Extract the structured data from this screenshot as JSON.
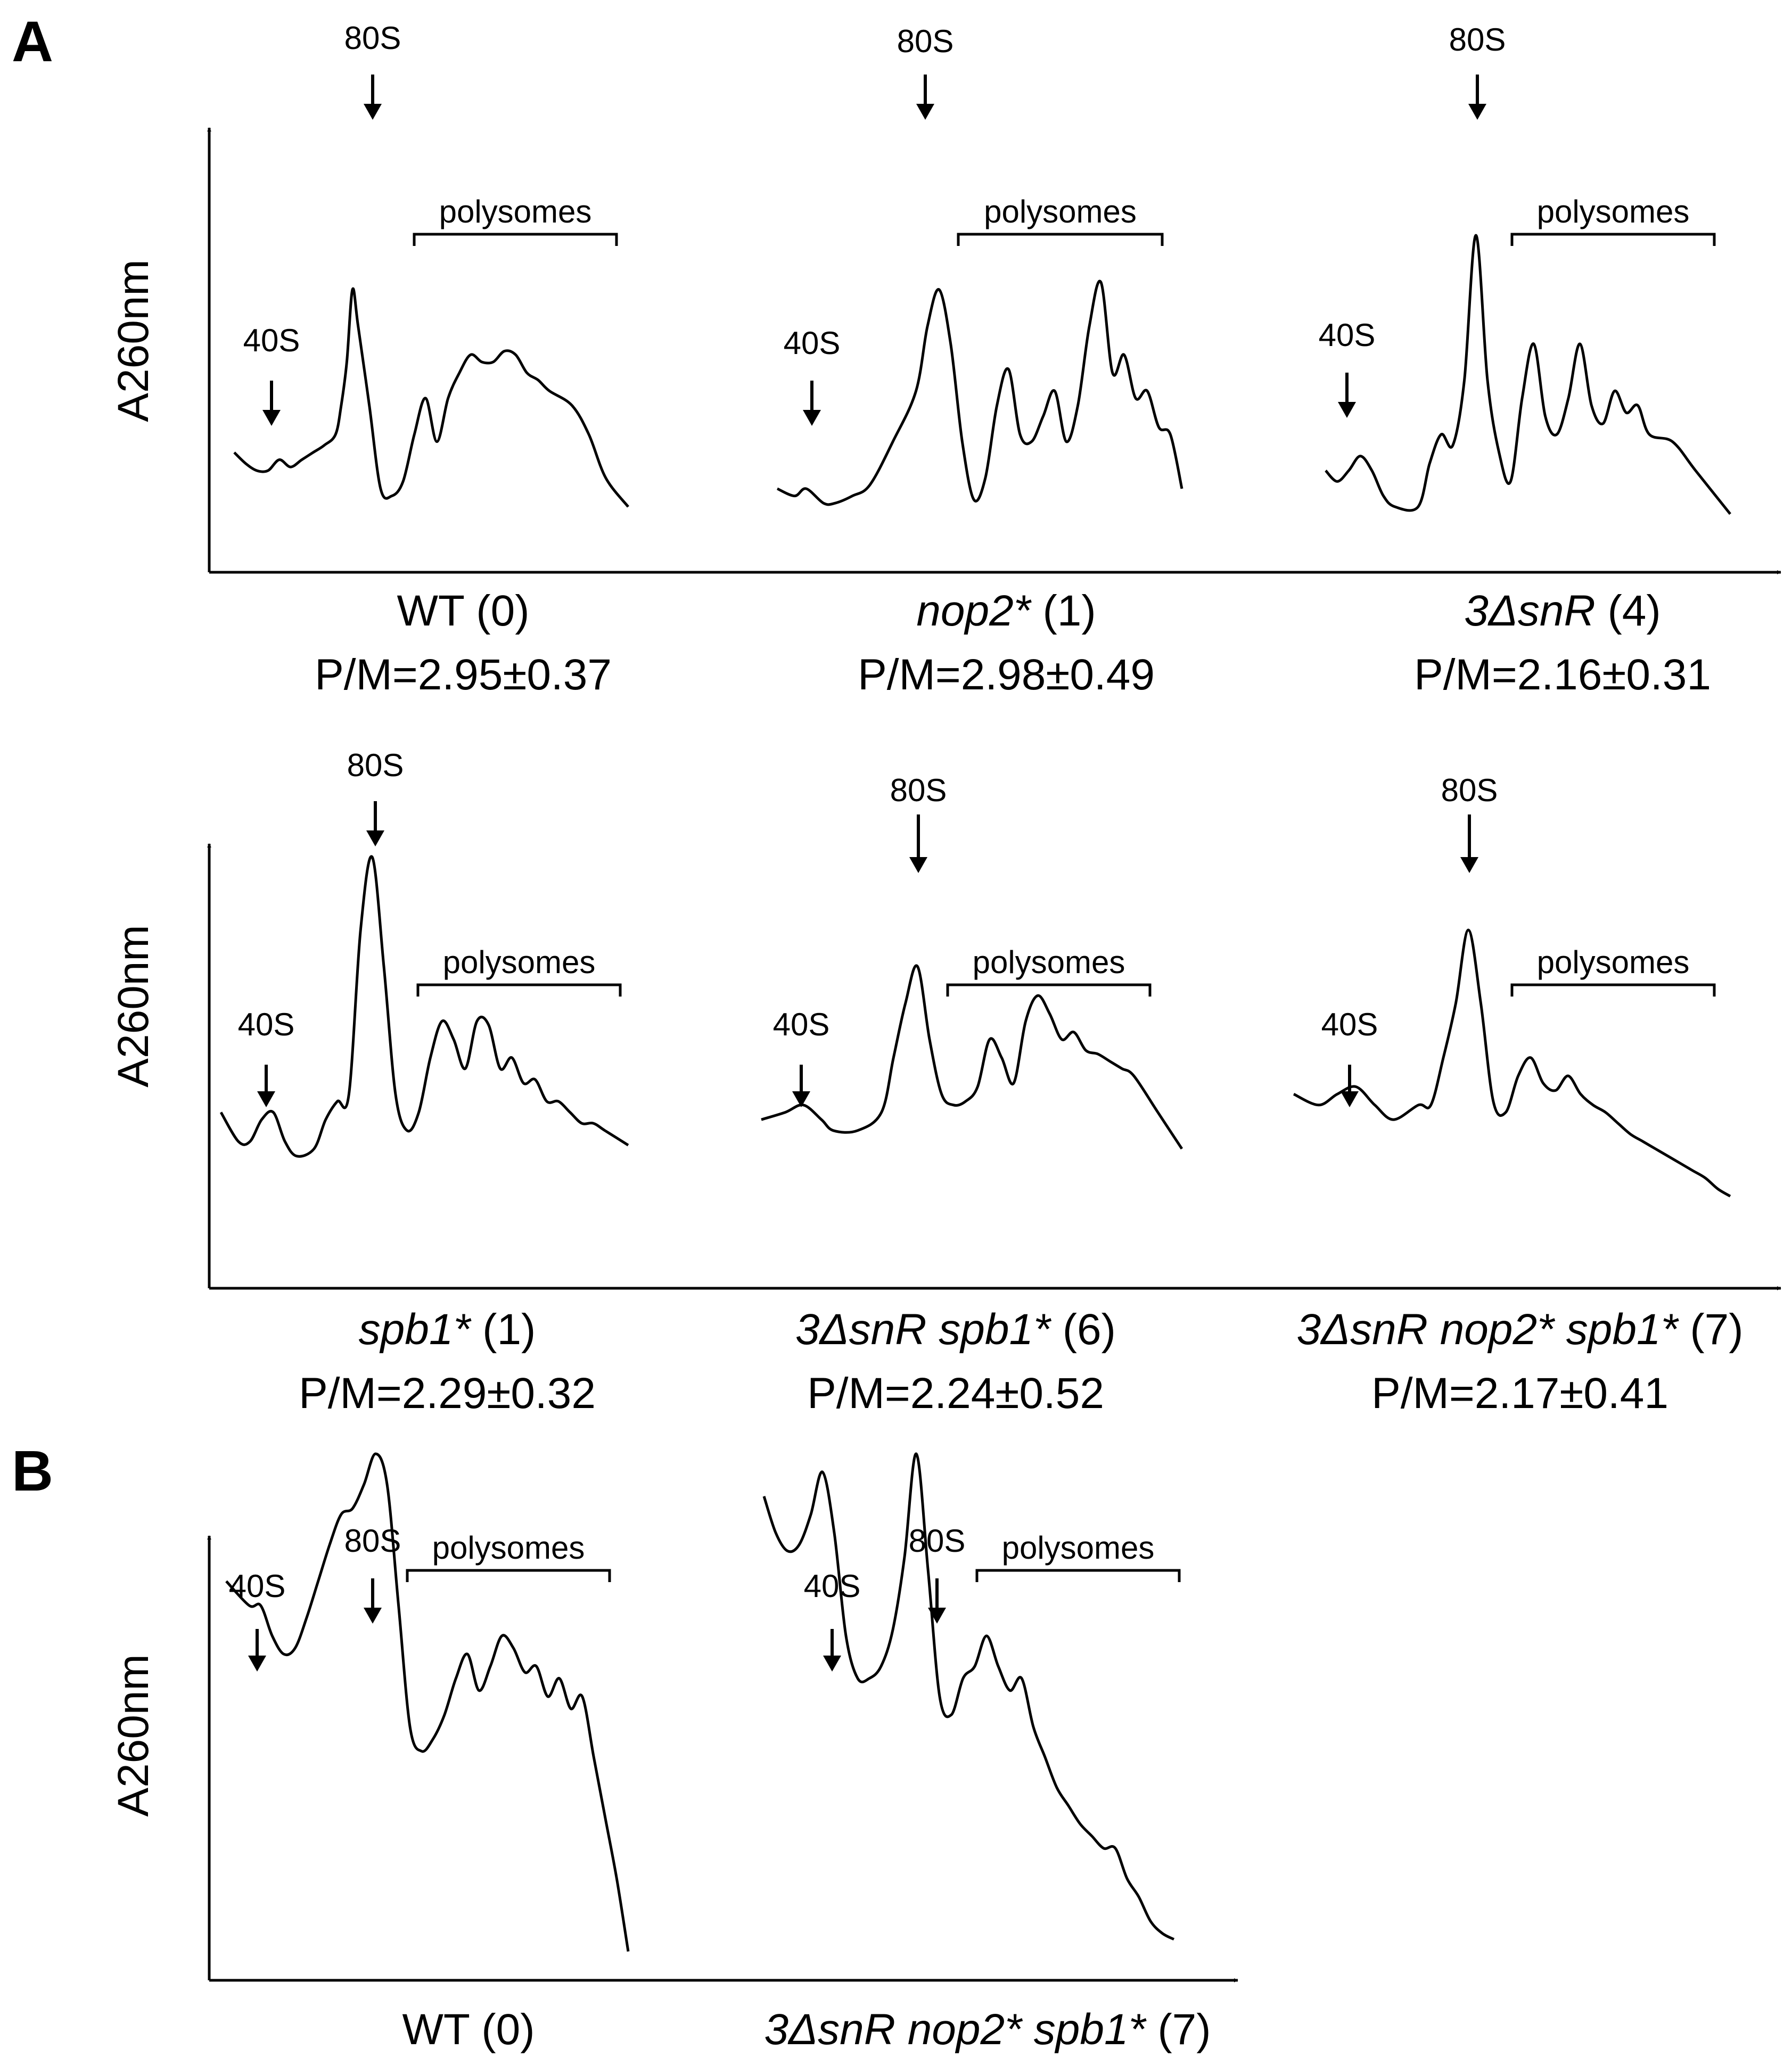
{
  "panels": [
    {
      "letter": "A",
      "y_label": "A260nm"
    },
    {
      "letter": "B",
      "y_label": "A260nm"
    }
  ],
  "labels": {
    "s40": "40S",
    "s80": "80S",
    "polysomes": "polysomes"
  },
  "colors": {
    "trace": "#000000",
    "axis": "#000000",
    "background": "#ffffff"
  },
  "chart_data": [
    {
      "type": "line",
      "panel": "A",
      "title_parts": [
        {
          "text": "WT",
          "italic": false
        },
        {
          "text": " (0)",
          "italic": false
        }
      ],
      "ratio": "P/M=2.95±0.37",
      "annotations": [
        "40S",
        "80S",
        "polysomes"
      ],
      "series": [
        {
          "x": [
            0,
            2,
            4,
            6,
            8,
            10,
            12,
            14,
            16,
            18,
            19,
            20,
            21,
            22,
            24,
            26,
            28,
            30,
            32,
            34,
            36,
            38,
            40,
            42,
            44,
            46,
            48,
            50,
            52,
            54,
            56,
            60,
            63,
            66,
            70
          ],
          "y": [
            25,
            22,
            20,
            20,
            23,
            21,
            23,
            25,
            27,
            30,
            38,
            50,
            70,
            60,
            38,
            15,
            13,
            17,
            30,
            40,
            28,
            40,
            47,
            52,
            50,
            50,
            53,
            52,
            47,
            45,
            42,
            38,
            30,
            18,
            10
          ]
        }
      ]
    },
    {
      "type": "line",
      "panel": "A",
      "title_parts": [
        {
          "text": "nop2*",
          "italic": true
        },
        {
          "text": " (1)",
          "italic": false
        }
      ],
      "ratio": "P/M=2.98±0.49",
      "annotations": [
        "40S",
        "80S",
        "polysomes"
      ],
      "series": [
        {
          "x": [
            0,
            3,
            5,
            8,
            10,
            13,
            16,
            20,
            24,
            26,
            28,
            30,
            32,
            34,
            36,
            38,
            40,
            42,
            44,
            46,
            48,
            50,
            52,
            54,
            56,
            58,
            60,
            62,
            64,
            66,
            68,
            70
          ],
          "y": [
            15,
            13,
            15,
            11,
            11,
            13,
            16,
            28,
            42,
            60,
            70,
            55,
            28,
            12,
            18,
            38,
            48,
            30,
            28,
            35,
            42,
            28,
            38,
            60,
            72,
            47,
            52,
            40,
            42,
            32,
            30,
            15
          ]
        }
      ]
    },
    {
      "type": "line",
      "panel": "A",
      "title_parts": [
        {
          "text": "3ΔsnR",
          "italic": true
        },
        {
          "text": " (4)",
          "italic": false
        }
      ],
      "ratio": "P/M=2.16±0.31",
      "annotations": [
        "40S",
        "80S",
        "polysomes"
      ],
      "series": [
        {
          "x": [
            0,
            2,
            4,
            6,
            8,
            10,
            12,
            16,
            18,
            20,
            22,
            24,
            26,
            28,
            30,
            32,
            34,
            36,
            38,
            40,
            42,
            44,
            46,
            48,
            50,
            52,
            54,
            56,
            60,
            64,
            70
          ],
          "y": [
            20,
            17,
            20,
            24,
            20,
            13,
            10,
            10,
            22,
            30,
            27,
            45,
            85,
            45,
            25,
            17,
            40,
            55,
            35,
            30,
            40,
            55,
            38,
            33,
            42,
            36,
            38,
            30,
            28,
            20,
            8
          ]
        }
      ]
    },
    {
      "type": "line",
      "panel": "A",
      "title_parts": [
        {
          "text": "spb1*",
          "italic": true
        },
        {
          "text": " (1)",
          "italic": false
        }
      ],
      "ratio": "P/M=2.29±0.32",
      "annotations": [
        "40S",
        "80S",
        "polysomes"
      ],
      "series": [
        {
          "x": [
            0,
            3,
            5,
            7,
            9,
            11,
            13,
            16,
            18,
            20,
            22,
            24,
            26,
            28,
            30,
            32,
            34,
            36,
            38,
            40,
            42,
            44,
            46,
            48,
            50,
            52,
            54,
            56,
            58,
            60,
            62,
            64,
            66,
            70
          ],
          "y": [
            30,
            22,
            22,
            28,
            30,
            22,
            18,
            20,
            28,
            33,
            35,
            80,
            100,
            70,
            35,
            25,
            30,
            45,
            55,
            50,
            42,
            55,
            54,
            42,
            45,
            38,
            39,
            33,
            33,
            30,
            27,
            27,
            25,
            21
          ]
        }
      ]
    },
    {
      "type": "line",
      "panel": "A",
      "title_parts": [
        {
          "text": "3ΔsnR spb1*",
          "italic": true
        },
        {
          "text": " (6)",
          "italic": false
        }
      ],
      "ratio": "P/M=2.24±0.52",
      "annotations": [
        "40S",
        "80S",
        "polysomes"
      ],
      "series": [
        {
          "x": [
            0,
            4,
            7,
            10,
            12,
            16,
            20,
            22,
            24,
            26,
            28,
            30,
            32,
            34,
            36,
            38,
            40,
            42,
            44,
            46,
            48,
            50,
            52,
            54,
            56,
            58,
            60,
            62,
            66,
            70
          ],
          "y": [
            28,
            30,
            32,
            28,
            25,
            25,
            30,
            45,
            60,
            70,
            50,
            35,
            32,
            33,
            37,
            50,
            45,
            38,
            55,
            62,
            57,
            50,
            52,
            47,
            46,
            44,
            42,
            40,
            30,
            20
          ]
        }
      ]
    },
    {
      "type": "line",
      "panel": "A",
      "title_parts": [
        {
          "text": "3ΔsnR nop2* spb1*",
          "italic": true
        },
        {
          "text": " (7)",
          "italic": false
        }
      ],
      "ratio": "P/M=2.17±0.41",
      "annotations": [
        "40S",
        "80S",
        "polysomes"
      ],
      "series": [
        {
          "x": [
            0,
            4,
            7,
            10,
            13,
            16,
            20,
            22,
            24,
            26,
            28,
            30,
            32,
            34,
            36,
            38,
            40,
            42,
            44,
            46,
            48,
            50,
            52,
            54,
            56,
            58,
            60,
            62,
            64,
            66,
            68,
            70
          ],
          "y": [
            35,
            32,
            35,
            37,
            32,
            28,
            32,
            32,
            45,
            60,
            80,
            60,
            33,
            30,
            40,
            45,
            38,
            36,
            40,
            35,
            32,
            30,
            27,
            24,
            22,
            20,
            18,
            16,
            14,
            12,
            9,
            7
          ]
        }
      ]
    },
    {
      "type": "line",
      "panel": "B",
      "title_parts": [
        {
          "text": "WT",
          "italic": false
        },
        {
          "text": " (0)",
          "italic": false
        }
      ],
      "ratio": "",
      "annotations": [
        "40S",
        "80S",
        "polysomes"
      ],
      "series": [
        {
          "x": [
            0,
            4,
            6,
            8,
            10,
            12,
            14,
            16,
            18,
            20,
            22,
            24,
            26,
            28,
            30,
            32,
            34,
            36,
            38,
            40,
            42,
            44,
            46,
            48,
            50,
            52,
            54,
            56,
            58,
            60,
            62,
            64,
            66,
            68,
            70
          ],
          "y": [
            64,
            60,
            60,
            55,
            52,
            53,
            58,
            64,
            70,
            75,
            76,
            80,
            85,
            80,
            60,
            40,
            36,
            38,
            42,
            48,
            52,
            46,
            50,
            55,
            53,
            49,
            50,
            45,
            48,
            43,
            45,
            35,
            25,
            15,
            3
          ]
        }
      ]
    },
    {
      "type": "line",
      "panel": "B",
      "title_parts": [
        {
          "text": "3ΔsnR nop2* spb1*",
          "italic": true
        },
        {
          "text": " (7)",
          "italic": false
        }
      ],
      "ratio": "",
      "annotations": [
        "40S",
        "80S",
        "polysomes"
      ],
      "series": [
        {
          "x": [
            0,
            2,
            4,
            6,
            8,
            10,
            12,
            14,
            16,
            18,
            20,
            22,
            24,
            26,
            28,
            30,
            32,
            34,
            36,
            38,
            40,
            42,
            44,
            46,
            48,
            50,
            52,
            54,
            56,
            58,
            60,
            62,
            64,
            66,
            68,
            70
          ],
          "y": [
            78,
            72,
            69,
            70,
            75,
            82,
            72,
            55,
            48,
            48,
            50,
            56,
            68,
            85,
            66,
            45,
            42,
            48,
            50,
            55,
            50,
            46,
            48,
            40,
            35,
            30,
            27,
            24,
            22,
            20,
            20,
            15,
            12,
            8,
            6,
            5
          ]
        }
      ]
    }
  ]
}
